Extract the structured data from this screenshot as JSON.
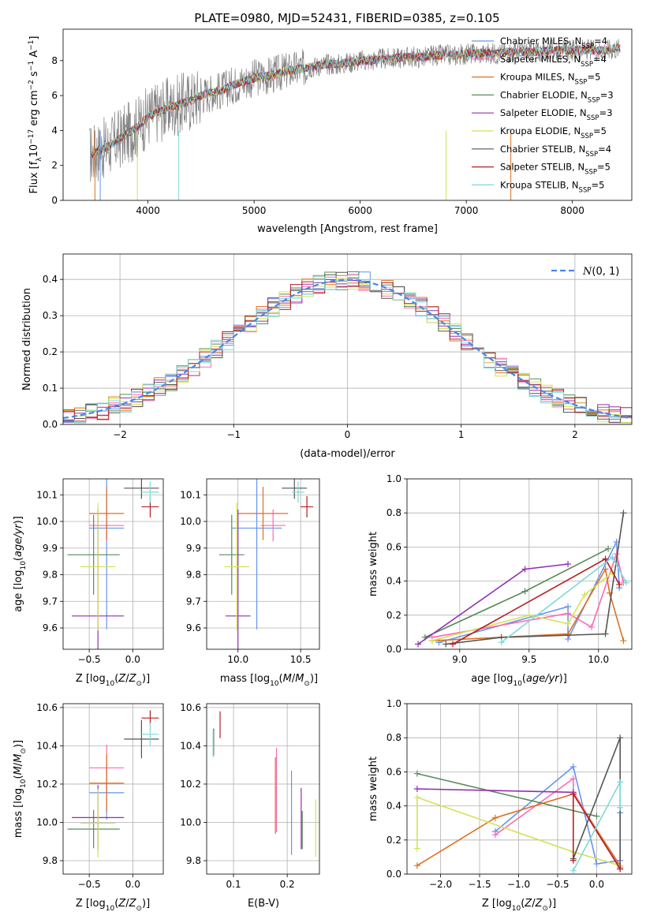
{
  "figure_title": "PLATE=0980, MJD=52431, FIBERID=0385, z=0.105",
  "colors": {
    "ch_miles": "#6495ed",
    "sa_miles": "#ff69b4",
    "kr_miles": "#e07020",
    "ch_elodie": "#5a8a5a",
    "sa_elodie": "#9030b0",
    "kr_elodie": "#d4e157",
    "ch_stelib": "#555555",
    "sa_stelib": "#b22222",
    "kr_stelib": "#7fd8d8"
  },
  "chart_data": [
    {
      "id": "spectrum",
      "type": "line",
      "title": "PLATE=0980, MJD=52431, FIBERID=0385, z=0.105",
      "xlabel": "wavelength [Angstrom, rest frame]",
      "ylabel_main": "Flux [f",
      "ylabel_sub": "λ",
      "ylabel_rest": "10",
      "ylabel_exp": "−17",
      "ylabel_tail": " erg cm",
      "ylabel_tail_exp": "−2",
      "ylabel_tail2": " s",
      "ylabel_tail2_exp": "−1",
      "ylabel_tail3": " A",
      "ylabel_tail3_exp": "−1",
      "ylabel_end": "]",
      "xlim": [
        3200,
        8560
      ],
      "ylim": [
        0,
        9.8
      ],
      "xticks": [
        4000,
        5000,
        6000,
        7000,
        8000
      ],
      "yticks": [
        0,
        2,
        4,
        6,
        8
      ],
      "spectrum_points": [
        [
          3450,
          2.6
        ],
        [
          3600,
          3.0
        ],
        [
          3700,
          3.4
        ],
        [
          3800,
          3.8
        ],
        [
          3900,
          4.2
        ],
        [
          4000,
          4.8
        ],
        [
          4100,
          5.1
        ],
        [
          4200,
          5.3
        ],
        [
          4300,
          5.5
        ],
        [
          4400,
          5.7
        ],
        [
          4500,
          6.0
        ],
        [
          4600,
          6.2
        ],
        [
          4700,
          6.3
        ],
        [
          4800,
          6.6
        ],
        [
          4900,
          6.8
        ],
        [
          5000,
          7.0
        ],
        [
          5100,
          7.1
        ],
        [
          5200,
          7.2
        ],
        [
          5300,
          7.4
        ],
        [
          5400,
          7.5
        ],
        [
          5500,
          7.6
        ],
        [
          5600,
          7.7
        ],
        [
          5700,
          7.8
        ],
        [
          5800,
          7.8
        ],
        [
          5900,
          7.9
        ],
        [
          6000,
          8.0
        ],
        [
          6100,
          8.0
        ],
        [
          6200,
          8.1
        ],
        [
          6300,
          8.1
        ],
        [
          6400,
          8.2
        ],
        [
          6500,
          8.2
        ],
        [
          6600,
          8.2
        ],
        [
          6700,
          8.3
        ],
        [
          6800,
          8.3
        ],
        [
          6900,
          8.3
        ],
        [
          7000,
          8.4
        ],
        [
          7100,
          8.4
        ],
        [
          7200,
          8.4
        ],
        [
          7300,
          8.4
        ],
        [
          7400,
          8.5
        ],
        [
          7500,
          8.5
        ],
        [
          7600,
          8.5
        ],
        [
          7700,
          8.5
        ],
        [
          7800,
          8.6
        ],
        [
          7900,
          8.6
        ],
        [
          8000,
          8.6
        ],
        [
          8100,
          8.6
        ],
        [
          8200,
          8.6
        ],
        [
          8300,
          8.6
        ],
        [
          8400,
          8.7
        ],
        [
          8500,
          8.7
        ]
      ],
      "legend": [
        {
          "label": "Chabrier MILES, N",
          "sub": "SSP",
          "rest": "=4",
          "color": "ch_miles"
        },
        {
          "label": "Salpeter MILES, N",
          "sub": "SSP",
          "rest": "=4",
          "color": "sa_miles"
        },
        {
          "label": "Kroupa MILES, N",
          "sub": "SSP",
          "rest": "=5",
          "color": "kr_miles"
        },
        {
          "label": "Chabrier ELODIE, N",
          "sub": "SSP",
          "rest": "=3",
          "color": "ch_elodie"
        },
        {
          "label": "Salpeter ELODIE, N",
          "sub": "SSP",
          "rest": "=3",
          "color": "sa_elodie"
        },
        {
          "label": "Kroupa ELODIE, N",
          "sub": "SSP",
          "rest": "=5",
          "color": "kr_elodie"
        },
        {
          "label": "Chabrier STELIB, N",
          "sub": "SSP",
          "rest": "=4",
          "color": "ch_stelib"
        },
        {
          "label": "Salpeter STELIB, N",
          "sub": "SSP",
          "rest": "=5",
          "color": "sa_stelib"
        },
        {
          "label": "Kroupa STELIB, N",
          "sub": "SSP",
          "rest": "=5",
          "color": "kr_stelib"
        }
      ]
    },
    {
      "id": "residuals",
      "type": "histogram",
      "xlabel": "(data-model)/error",
      "ylabel": "Normed distribution",
      "xlim": [
        -2.5,
        2.5
      ],
      "ylim": [
        0,
        0.47
      ],
      "xticks": [
        -2,
        -1,
        0,
        1,
        2
      ],
      "xtick_labels": [
        "−2",
        "−1",
        "0",
        "1",
        "2"
      ],
      "yticks": [
        0.0,
        0.1,
        0.2,
        0.3,
        0.4
      ],
      "ytick_labels": [
        "0.0",
        "0.1",
        "0.2",
        "0.3",
        "0.4"
      ],
      "legend_label": "N(0,1)",
      "bin_width": 0.1
    },
    {
      "id": "age_vs_z",
      "type": "errorbar",
      "xlabel": "Z [log",
      "ylabel": "age  [log",
      "xlim": [
        -0.8,
        0.35
      ],
      "ylim": [
        9.52,
        10.16
      ],
      "xticks": [
        -0.5,
        0.0
      ],
      "xtick_labels": [
        "−0.5",
        "0.0"
      ],
      "yticks": [
        9.6,
        9.7,
        9.8,
        9.9,
        10.0,
        10.1
      ],
      "ytick_labels": [
        "9.6",
        "9.7",
        "9.8",
        "9.9",
        "10.0",
        "10.1"
      ],
      "points": [
        {
          "c": "ch_miles",
          "x": -0.3,
          "xe": 0.2,
          "y": 9.975,
          "ye": 0.38
        },
        {
          "c": "sa_miles",
          "x": -0.3,
          "xe": 0.2,
          "y": 9.985,
          "ye": 0.06
        },
        {
          "c": "kr_miles",
          "x": -0.3,
          "xe": 0.2,
          "y": 10.03,
          "ye": 0.1
        },
        {
          "c": "ch_elodie",
          "x": -0.45,
          "xe": 0.3,
          "y": 9.875,
          "ye": 0.15
        },
        {
          "c": "sa_elodie",
          "x": -0.4,
          "xe": 0.3,
          "y": 9.645,
          "ye": 0.4
        },
        {
          "c": "kr_elodie",
          "x": -0.4,
          "xe": 0.2,
          "y": 9.83,
          "ye": 0.24
        },
        {
          "c": "ch_stelib",
          "x": 0.1,
          "xe": 0.2,
          "y": 10.125,
          "ye": 0.04
        },
        {
          "c": "sa_stelib",
          "x": 0.2,
          "xe": 0.1,
          "y": 10.055,
          "ye": 0.04
        },
        {
          "c": "kr_stelib",
          "x": 0.2,
          "xe": 0.1,
          "y": 10.11,
          "ye": 0.04
        }
      ]
    },
    {
      "id": "age_vs_mass",
      "type": "errorbar",
      "xlabel": "mass [log",
      "xlim": [
        9.75,
        10.65
      ],
      "ylim": [
        9.52,
        10.16
      ],
      "xticks": [
        10.0,
        10.5
      ],
      "xtick_labels": [
        "10.0",
        "10.5"
      ],
      "yticks": [
        9.6,
        9.7,
        9.8,
        9.9,
        10.0,
        10.1
      ],
      "ytick_labels": [
        "9.6",
        "9.7",
        "9.8",
        "9.9",
        "10.0",
        "10.1"
      ],
      "points": [
        {
          "c": "ch_miles",
          "x": 10.15,
          "xe": 0.2,
          "y": 9.975,
          "ye": 0.38
        },
        {
          "c": "sa_miles",
          "x": 10.28,
          "xe": 0.1,
          "y": 9.985,
          "ye": 0.06
        },
        {
          "c": "kr_miles",
          "x": 10.2,
          "xe": 0.2,
          "y": 10.03,
          "ye": 0.1
        },
        {
          "c": "ch_elodie",
          "x": 9.95,
          "xe": 0.1,
          "y": 9.875,
          "ye": 0.15
        },
        {
          "c": "sa_elodie",
          "x": 10.0,
          "xe": 0.1,
          "y": 9.645,
          "ye": 0.4
        },
        {
          "c": "kr_elodie",
          "x": 9.99,
          "xe": 0.1,
          "y": 9.83,
          "ye": 0.24
        },
        {
          "c": "ch_stelib",
          "x": 10.45,
          "xe": 0.1,
          "y": 10.125,
          "ye": 0.04
        },
        {
          "c": "sa_stelib",
          "x": 10.55,
          "xe": 0.05,
          "y": 10.055,
          "ye": 0.04
        },
        {
          "c": "kr_stelib",
          "x": 10.48,
          "xe": 0.05,
          "y": 10.11,
          "ye": 0.04
        }
      ]
    },
    {
      "id": "weight_vs_age",
      "type": "line",
      "xlabel": "age  [log",
      "ylabel": "mass weight",
      "xlim": [
        8.62,
        10.24
      ],
      "ylim": [
        0,
        1.0
      ],
      "xticks": [
        9.0,
        9.5,
        10.0
      ],
      "xtick_labels": [
        "9.0",
        "9.5",
        "10.0"
      ],
      "yticks": [
        0.0,
        0.2,
        0.4,
        0.6,
        0.8,
        1.0
      ],
      "ytick_labels": [
        "0.0",
        "0.2",
        "0.4",
        "0.6",
        "0.8",
        "1.0"
      ],
      "series": [
        {
          "c": "ch_miles",
          "pts": [
            [
              8.85,
              0.04
            ],
            [
              9.78,
              0.25
            ],
            [
              9.78,
              0.06
            ],
            [
              10.13,
              0.63
            ],
            [
              10.15,
              0.36
            ]
          ]
        },
        {
          "c": "sa_miles",
          "pts": [
            [
              8.8,
              0.07
            ],
            [
              9.78,
              0.21
            ],
            [
              9.95,
              0.13
            ],
            [
              10.13,
              0.56
            ],
            [
              10.18,
              0.39
            ]
          ]
        },
        {
          "c": "kr_miles",
          "pts": [
            [
              8.8,
              0.05
            ],
            [
              9.78,
              0.09
            ],
            [
              10.05,
              0.47
            ],
            [
              10.08,
              0.33
            ],
            [
              10.18,
              0.05
            ]
          ]
        },
        {
          "c": "ch_elodie",
          "pts": [
            [
              8.75,
              0.07
            ],
            [
              9.47,
              0.34
            ],
            [
              10.07,
              0.59
            ]
          ]
        },
        {
          "c": "sa_elodie",
          "pts": [
            [
              8.7,
              0.03
            ],
            [
              9.47,
              0.47
            ],
            [
              9.78,
              0.5
            ]
          ]
        },
        {
          "c": "kr_elodie",
          "pts": [
            [
              8.8,
              0.05
            ],
            [
              9.5,
              0.2
            ],
            [
              9.78,
              0.15
            ],
            [
              9.9,
              0.32
            ],
            [
              10.1,
              0.45
            ]
          ]
        },
        {
          "c": "ch_stelib",
          "pts": [
            [
              8.9,
              0.03
            ],
            [
              9.3,
              0.07
            ],
            [
              10.05,
              0.09
            ],
            [
              10.18,
              0.8
            ]
          ]
        },
        {
          "c": "sa_stelib",
          "pts": [
            [
              8.95,
              0.03
            ],
            [
              10.05,
              0.53
            ],
            [
              10.15,
              0.38
            ]
          ]
        },
        {
          "c": "kr_stelib",
          "pts": [
            [
              9.3,
              0.04
            ],
            [
              10.1,
              0.54
            ],
            [
              10.2,
              0.39
            ]
          ]
        }
      ]
    },
    {
      "id": "mass_vs_z",
      "type": "errorbar",
      "xlabel": "Z [log",
      "ylabel": "mass [log",
      "xlim": [
        -0.8,
        0.35
      ],
      "ylim": [
        9.73,
        10.62
      ],
      "xticks": [
        -0.5,
        0.0
      ],
      "xtick_labels": [
        "−0.5",
        "0.0"
      ],
      "yticks": [
        9.8,
        10.0,
        10.2,
        10.4,
        10.6
      ],
      "ytick_labels": [
        "9.8",
        "10.0",
        "10.2",
        "10.4",
        "10.6"
      ],
      "points": [
        {
          "c": "ch_miles",
          "x": -0.3,
          "xe": 0.2,
          "y": 10.155,
          "ye": 0.14
        },
        {
          "c": "sa_miles",
          "x": -0.3,
          "xe": 0.2,
          "y": 10.285,
          "ye": 0.12
        },
        {
          "c": "kr_miles",
          "x": -0.3,
          "xe": 0.2,
          "y": 10.205,
          "ye": 0.15
        },
        {
          "c": "ch_elodie",
          "x": -0.45,
          "xe": 0.3,
          "y": 9.965,
          "ye": 0.1
        },
        {
          "c": "sa_elodie",
          "x": -0.4,
          "xe": 0.3,
          "y": 10.025,
          "ye": 0.17
        },
        {
          "c": "kr_elodie",
          "x": -0.4,
          "xe": 0.2,
          "y": 9.995,
          "ye": 0.18
        },
        {
          "c": "ch_stelib",
          "x": 0.1,
          "xe": 0.2,
          "y": 10.435,
          "ye": 0.1
        },
        {
          "c": "sa_stelib",
          "x": 0.2,
          "xe": 0.1,
          "y": 10.545,
          "ye": 0.04
        },
        {
          "c": "kr_stelib",
          "x": 0.2,
          "xe": 0.1,
          "y": 10.46,
          "ye": 0.06
        }
      ]
    },
    {
      "id": "mass_vs_ebv",
      "type": "errorbar",
      "xlabel": "E(B-V)",
      "xlim": [
        0.05,
        0.26
      ],
      "ylim": [
        9.73,
        10.62
      ],
      "xticks": [
        0.1,
        0.2
      ],
      "xtick_labels": [
        "0.1",
        "0.2"
      ],
      "yticks": [
        9.8,
        10.0,
        10.2,
        10.4,
        10.6
      ],
      "ytick_labels": [
        "9.8",
        "10.0",
        "10.2",
        "10.4",
        "10.6"
      ],
      "points": [
        {
          "c": "ch_miles",
          "x": 0.208,
          "y": 10.05,
          "ye": 0.22
        },
        {
          "c": "sa_miles",
          "x": 0.18,
          "y": 10.17,
          "ye": 0.22
        },
        {
          "c": "kr_miles",
          "x": 0.178,
          "y": 10.14,
          "ye": 0.2
        },
        {
          "c": "ch_elodie",
          "x": 0.228,
          "y": 9.96,
          "ye": 0.1
        },
        {
          "c": "sa_elodie",
          "x": 0.226,
          "y": 10.02,
          "ye": 0.16
        },
        {
          "c": "kr_elodie",
          "x": 0.253,
          "y": 9.97,
          "ye": 0.15
        },
        {
          "c": "ch_stelib",
          "x": 0.063,
          "y": 10.42,
          "ye": 0.07
        },
        {
          "c": "sa_stelib",
          "x": 0.075,
          "y": 10.51,
          "ye": 0.07
        },
        {
          "c": "kr_stelib",
          "x": 0.062,
          "y": 10.41,
          "ye": 0.07
        }
      ]
    },
    {
      "id": "weight_vs_z",
      "type": "line",
      "xlabel": "Z [log",
      "ylabel": "mass weight",
      "xlim": [
        -2.43,
        0.45
      ],
      "ylim": [
        0,
        1.0
      ],
      "xticks": [
        -2.0,
        -1.5,
        -1.0,
        -0.5,
        0.0
      ],
      "xtick_labels": [
        "−2.0",
        "−1.5",
        "−1.0",
        "−0.5",
        "0.0"
      ],
      "yticks": [
        0.0,
        0.2,
        0.4,
        0.6,
        0.8,
        1.0
      ],
      "ytick_labels": [
        "0.0",
        "0.2",
        "0.4",
        "0.6",
        "0.8",
        "1.0"
      ],
      "series": [
        {
          "c": "ch_miles",
          "pts": [
            [
              -1.3,
              0.25
            ],
            [
              -0.3,
              0.63
            ],
            [
              0.0,
              0.06
            ],
            [
              0.3,
              0.08
            ],
            [
              0.3,
              0.36
            ]
          ]
        },
        {
          "c": "sa_miles",
          "pts": [
            [
              -1.3,
              0.23
            ],
            [
              -0.3,
              0.56
            ],
            [
              -0.3,
              0.48
            ],
            [
              0.3,
              0.04
            ]
          ]
        },
        {
          "c": "kr_miles",
          "pts": [
            [
              -2.3,
              0.05
            ],
            [
              -1.3,
              0.33
            ],
            [
              -0.3,
              0.47
            ],
            [
              0.3,
              0.05
            ]
          ]
        },
        {
          "c": "ch_elodie",
          "pts": [
            [
              -2.3,
              0.59
            ],
            [
              0.0,
              0.34
            ]
          ]
        },
        {
          "c": "sa_elodie",
          "pts": [
            [
              -2.3,
              0.5
            ],
            [
              -0.3,
              0.48
            ]
          ]
        },
        {
          "c": "kr_elodie",
          "pts": [
            [
              -2.3,
              0.15
            ],
            [
              -2.3,
              0.45
            ],
            [
              -0.3,
              0.13
            ],
            [
              0.3,
              0.05
            ]
          ]
        },
        {
          "c": "ch_stelib",
          "pts": [
            [
              -0.3,
              0.09
            ],
            [
              0.3,
              0.8
            ],
            [
              0.3,
              0.03
            ]
          ]
        },
        {
          "c": "sa_stelib",
          "pts": [
            [
              -0.3,
              0.08
            ],
            [
              -0.3,
              0.47
            ],
            [
              0.3,
              0.03
            ]
          ]
        },
        {
          "c": "kr_stelib",
          "pts": [
            [
              -0.3,
              0.02
            ],
            [
              0.3,
              0.54
            ],
            [
              0.3,
              0.39
            ]
          ]
        }
      ]
    }
  ]
}
